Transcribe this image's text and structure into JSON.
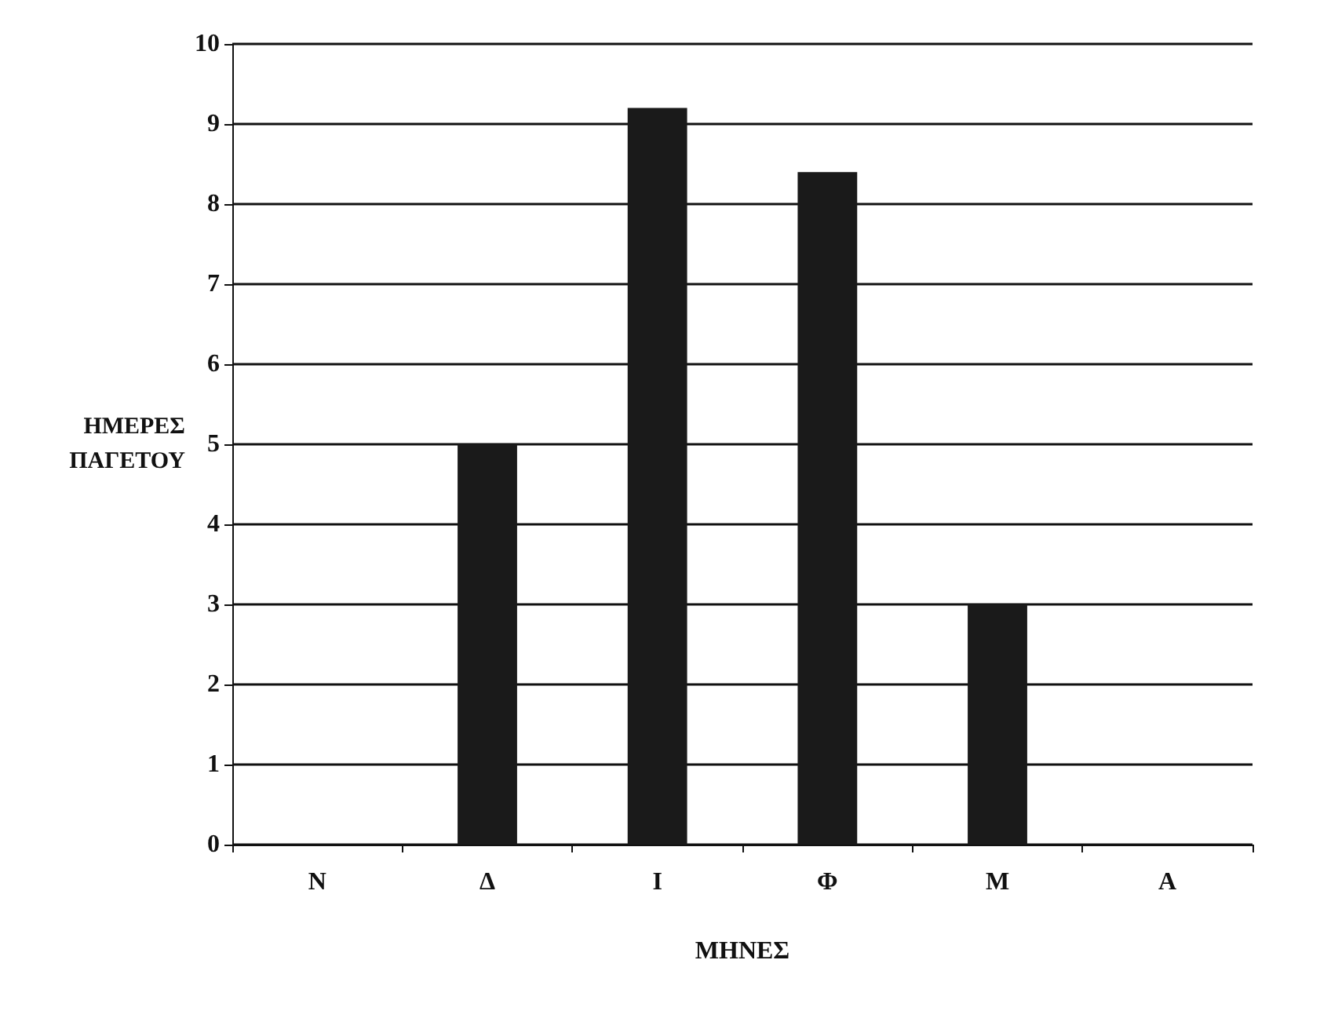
{
  "chart_data": {
    "type": "bar",
    "xlabel": "ΜΗΝΕΣ",
    "ylabel": "ΗΜΕΡΕΣ\nΠΑΓΕΤΟΥ",
    "categories": [
      "Ν",
      "Δ",
      "Ι",
      "Φ",
      "Μ",
      "Α"
    ],
    "values": [
      0,
      5,
      9.2,
      8.4,
      3,
      0
    ],
    "color": "#1a1a1a",
    "ylim": [
      0,
      10
    ],
    "yticks": [
      0,
      1,
      2,
      3,
      4,
      5,
      6,
      7,
      8,
      9,
      10
    ],
    "grid": "y"
  }
}
